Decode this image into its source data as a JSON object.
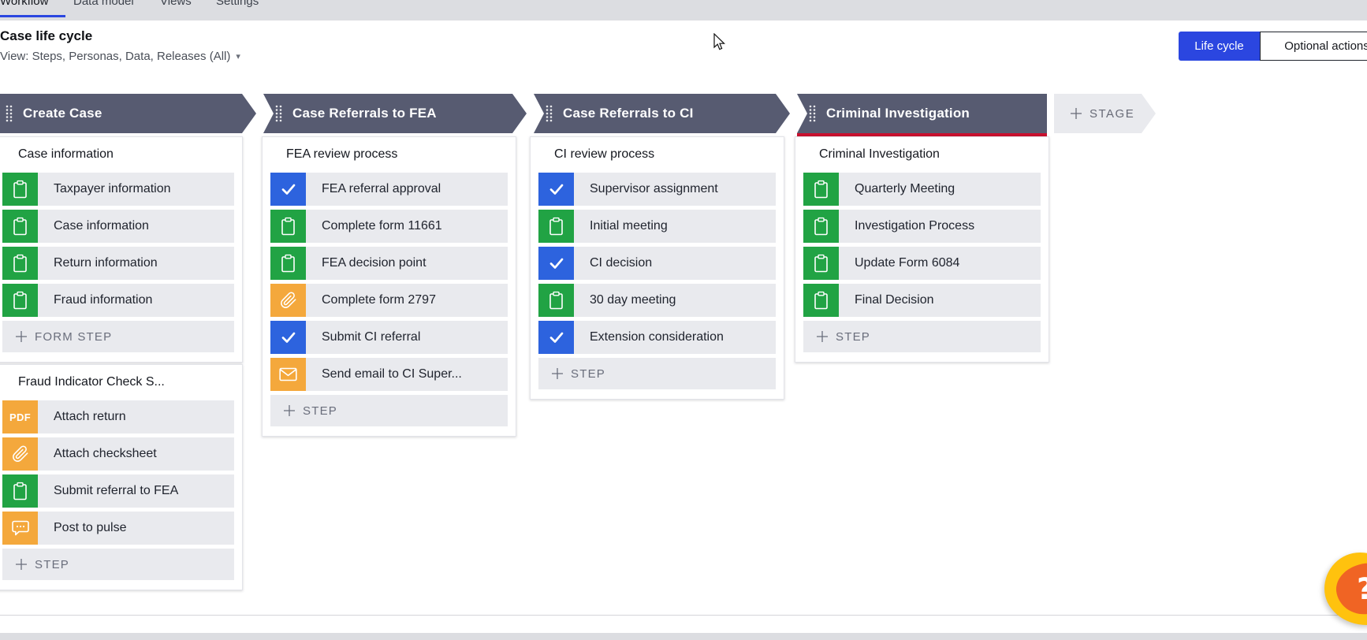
{
  "app": {
    "tabs": [
      {
        "label": "Workflow",
        "active": true
      },
      {
        "label": "Data model",
        "active": false
      },
      {
        "label": "Views",
        "active": false
      },
      {
        "label": "Settings",
        "active": false
      }
    ]
  },
  "header": {
    "title": "Case life cycle",
    "view_selector": "View: Steps, Personas, Data, Releases (All)",
    "toggle": [
      {
        "label": "Life cycle",
        "active": true
      },
      {
        "label": "Optional actions",
        "active": false
      }
    ]
  },
  "canvas": {
    "add_stage_label": "STAGE",
    "stages": [
      {
        "name": "Create Case",
        "highlighted": false,
        "processes": [
          {
            "title": "Case information",
            "add_label": "FORM STEP",
            "steps": [
              {
                "label": "Taxpayer information",
                "icon": "clipboard",
                "color": "green"
              },
              {
                "label": "Case information",
                "icon": "clipboard",
                "color": "green"
              },
              {
                "label": "Return information",
                "icon": "clipboard",
                "color": "green"
              },
              {
                "label": "Fraud information",
                "icon": "clipboard",
                "color": "green"
              }
            ]
          },
          {
            "title": "Fraud Indicator Check S...",
            "add_label": "STEP",
            "steps": [
              {
                "label": "Attach return",
                "icon": "pdf",
                "color": "orange"
              },
              {
                "label": "Attach checksheet",
                "icon": "paperclip",
                "color": "orange"
              },
              {
                "label": "Submit referral to FEA",
                "icon": "clipboard",
                "color": "green"
              },
              {
                "label": "Post to pulse",
                "icon": "chat",
                "color": "orange"
              }
            ]
          }
        ]
      },
      {
        "name": "Case Referrals to FEA",
        "highlighted": false,
        "processes": [
          {
            "title": "FEA review process",
            "add_label": "STEP",
            "steps": [
              {
                "label": "FEA referral approval",
                "icon": "check",
                "color": "blue"
              },
              {
                "label": "Complete form 11661",
                "icon": "clipboard",
                "color": "green"
              },
              {
                "label": "FEA decision point",
                "icon": "clipboard",
                "color": "green"
              },
              {
                "label": "Complete form 2797",
                "icon": "paperclip",
                "color": "orange"
              },
              {
                "label": "Submit CI referral",
                "icon": "check",
                "color": "blue"
              },
              {
                "label": "Send email to CI Super...",
                "icon": "email",
                "color": "orange"
              }
            ]
          }
        ]
      },
      {
        "name": "Case Referrals to CI",
        "highlighted": false,
        "processes": [
          {
            "title": "CI review process",
            "add_label": "STEP",
            "steps": [
              {
                "label": "Supervisor assignment",
                "icon": "check",
                "color": "blue"
              },
              {
                "label": "Initial meeting",
                "icon": "clipboard",
                "color": "green"
              },
              {
                "label": "CI decision",
                "icon": "check",
                "color": "blue"
              },
              {
                "label": "30 day meeting",
                "icon": "clipboard",
                "color": "green"
              },
              {
                "label": "Extension consideration",
                "icon": "check",
                "color": "blue"
              }
            ]
          }
        ]
      },
      {
        "name": "Criminal Investigation",
        "highlighted": true,
        "processes": [
          {
            "title": "Criminal Investigation",
            "add_label": "STEP",
            "steps": [
              {
                "label": "Quarterly Meeting",
                "icon": "clipboard",
                "color": "green"
              },
              {
                "label": "Investigation Process",
                "icon": "clipboard",
                "color": "green"
              },
              {
                "label": "Update Form 6084",
                "icon": "clipboard",
                "color": "green"
              },
              {
                "label": "Final Decision",
                "icon": "clipboard",
                "color": "green"
              }
            ]
          }
        ]
      }
    ]
  },
  "help_button": {
    "label": "?"
  },
  "colors": {
    "accent_blue": "#2b46e0",
    "stage_slate": "#575b71",
    "stage_highlight_red": "#c8102e",
    "step_green": "#21a344",
    "step_blue": "#2d63de",
    "step_orange": "#f4a83c",
    "row_gray": "#e9eaee"
  }
}
